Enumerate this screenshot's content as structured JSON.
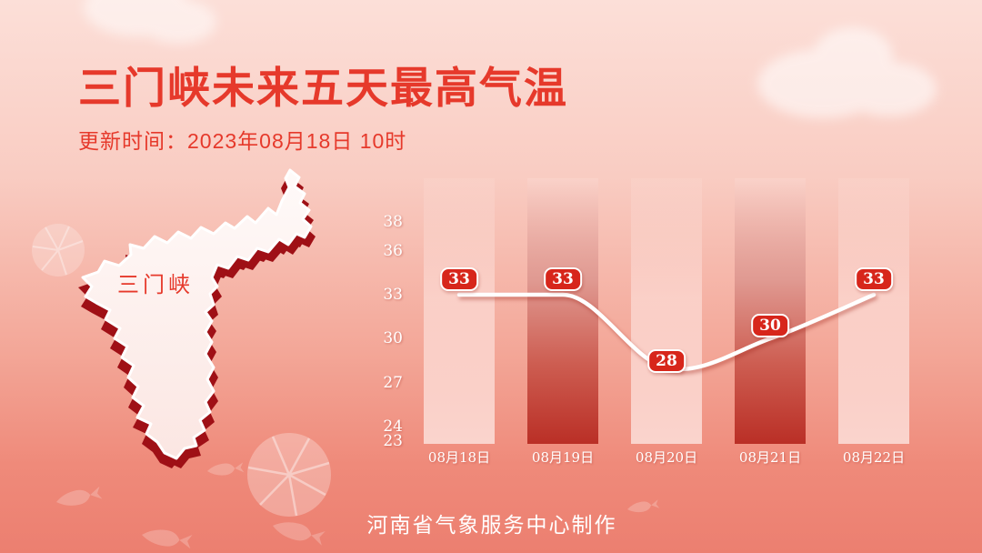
{
  "header": {
    "title": "三门峡未来五天最高气温",
    "update_time": "更新时间：2023年08月18日 10时"
  },
  "map": {
    "label": "三门峡"
  },
  "footer": {
    "credit": "河南省气象服务中心制作"
  },
  "colors": {
    "title_red": "#e6392b",
    "badge_red": "#d7261b",
    "dark_bar_bottom": "#ba2f26",
    "map_extrude_red": "#9f1016",
    "line_color": "#ffffff",
    "background_top": "#fcdfd8",
    "background_bottom": "#ec7f70"
  },
  "chart_data": {
    "type": "line",
    "title": "三门峡未来五天最高气温",
    "categories": [
      "08月18日",
      "08月19日",
      "08月20日",
      "08月21日",
      "08月22日"
    ],
    "series": [
      {
        "name": "最高气温",
        "values": [
          33,
          33,
          28,
          30,
          33
        ]
      }
    ],
    "data_labels": [
      "33",
      "33",
      "28",
      "30",
      "33"
    ],
    "yticks": [
      38,
      36,
      33,
      30,
      27,
      24,
      23
    ],
    "ylim": [
      23,
      41
    ],
    "xlabel": "",
    "ylabel": "",
    "grid": false,
    "legend": "none",
    "bar_styles": [
      "light",
      "dark",
      "light",
      "dark",
      "light"
    ],
    "highlighted_days": [
      "08月19日",
      "08月21日"
    ]
  }
}
